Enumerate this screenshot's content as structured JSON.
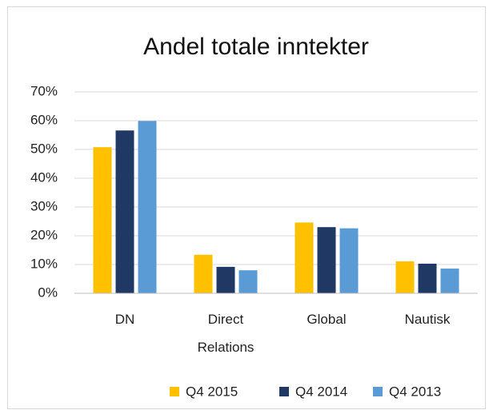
{
  "chart_data": {
    "type": "bar",
    "title": "Andel totale inntekter",
    "categories": [
      "DN",
      "Direct Relations",
      "Global",
      "Nautisk"
    ],
    "series": [
      {
        "name": "Q4 2015",
        "color": "#ffc000",
        "values": [
          50.8,
          13.4,
          24.6,
          11.1
        ]
      },
      {
        "name": "Q4 2014",
        "color": "#203864",
        "values": [
          56.6,
          9.2,
          23.0,
          10.3
        ]
      },
      {
        "name": "Q4 2013",
        "color": "#5b9bd5",
        "values": [
          59.9,
          8.0,
          22.6,
          8.6
        ]
      }
    ],
    "ylim": [
      0,
      70
    ],
    "yticks": [
      {
        "value": 0,
        "label": "0%"
      },
      {
        "value": 10,
        "label": "10%"
      },
      {
        "value": 20,
        "label": "20%"
      },
      {
        "value": 30,
        "label": "30%"
      },
      {
        "value": 40,
        "label": "40%"
      },
      {
        "value": 50,
        "label": "50%"
      },
      {
        "value": 60,
        "label": "60%"
      },
      {
        "value": 70,
        "label": "70%"
      }
    ],
    "grid": true,
    "legend": "bottom"
  }
}
